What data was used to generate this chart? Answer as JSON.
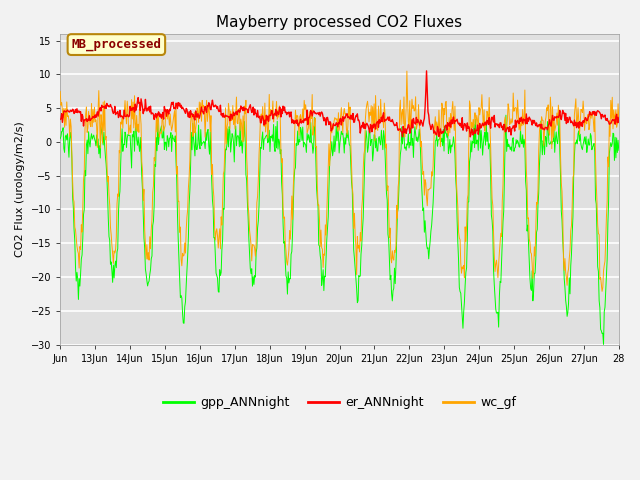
{
  "title": "Mayberry processed CO2 Fluxes",
  "ylabel": "CO2 Flux (urology/m2/s)",
  "ylim": [
    -30,
    16
  ],
  "yticks": [
    -30,
    -25,
    -20,
    -15,
    -10,
    -5,
    0,
    5,
    10,
    15
  ],
  "x_start_day": 12,
  "x_end_day": 28,
  "x_tick_days": [
    12,
    13,
    14,
    15,
    16,
    17,
    18,
    19,
    20,
    21,
    22,
    23,
    24,
    25,
    26,
    27,
    28
  ],
  "x_tick_labels": [
    "Jun",
    "13Jun",
    "14Jun",
    "15Jun",
    "16Jun",
    "17Jun",
    "18Jun",
    "19Jun",
    "20Jun",
    "21Jun",
    "22Jun",
    "23Jun",
    "24Jun",
    "25Jun",
    "26Jun",
    "27Jun",
    "28"
  ],
  "background_color": "#f2f2f2",
  "plot_bg_color": "#e0e0e0",
  "line_gpp_color": "#00ff00",
  "line_er_color": "#ff0000",
  "line_wc_color": "#ffa500",
  "legend_label_gpp": "gpp_ANNnight",
  "legend_label_er": "er_ANNnight",
  "legend_label_wc": "wc_gf",
  "annotation_text": "MB_processed",
  "annotation_color": "#8b0000",
  "annotation_bg": "#ffffcc",
  "annotation_border": "#b8860b",
  "title_fontsize": 11,
  "tick_fontsize": 7,
  "ylabel_fontsize": 8,
  "legend_fontsize": 9
}
